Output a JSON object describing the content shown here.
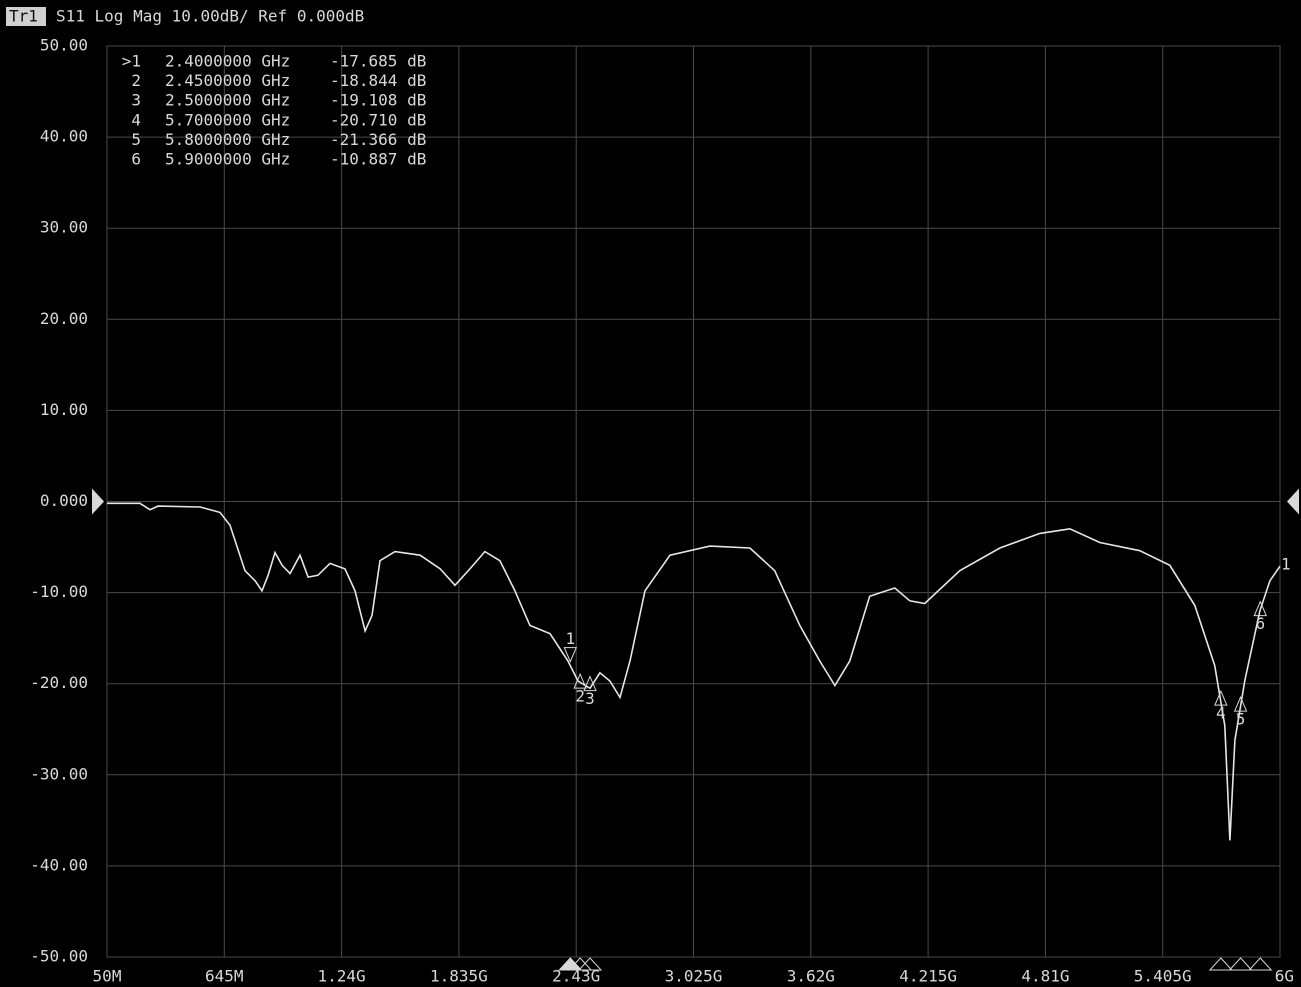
{
  "chart_data": {
    "type": "line",
    "trace_label": "Tr1",
    "title": "S11 Log Mag 10.00dB/ Ref 0.000dB",
    "color": "#e6e6e6",
    "grid": true,
    "xlim": [
      50,
      6000
    ],
    "xticks": [
      {
        "value": 50,
        "label": "50M"
      },
      {
        "value": 645,
        "label": "645M"
      },
      {
        "value": 1240,
        "label": "1.24G"
      },
      {
        "value": 1835,
        "label": "1.835G"
      },
      {
        "value": 2430,
        "label": "2.43G"
      },
      {
        "value": 3025,
        "label": "3.025G"
      },
      {
        "value": 3620,
        "label": "3.62G"
      },
      {
        "value": 4215,
        "label": "4.215G"
      },
      {
        "value": 4810,
        "label": "4.81G"
      },
      {
        "value": 5405,
        "label": "5.405G"
      },
      {
        "value": 6000,
        "label": "6G"
      }
    ],
    "ylim": [
      -50,
      50
    ],
    "yticks": [
      {
        "value": 50,
        "label": "50.00"
      },
      {
        "value": 40,
        "label": "40.00"
      },
      {
        "value": 30,
        "label": "30.00"
      },
      {
        "value": 20,
        "label": "20.00"
      },
      {
        "value": 10,
        "label": "10.00"
      },
      {
        "value": 0,
        "label": "0.000"
      },
      {
        "value": -10,
        "label": "-10.00"
      },
      {
        "value": -20,
        "label": "-20.00"
      },
      {
        "value": -30,
        "label": "-30.00"
      },
      {
        "value": -40,
        "label": "-40.00"
      },
      {
        "value": -50,
        "label": "-50.00"
      }
    ],
    "x": [
      50,
      217,
      268,
      309,
      522,
      623,
      674,
      750,
      801,
      836,
      867,
      902,
      938,
      979,
      1029,
      1070,
      1120,
      1181,
      1257,
      1308,
      1359,
      1394,
      1435,
      1511,
      1638,
      1740,
      1815,
      1891,
      1967,
      2043,
      2119,
      2195,
      2297,
      2388,
      2439,
      2500,
      2550,
      2601,
      2652,
      2703,
      2779,
      2906,
      3108,
      3311,
      3437,
      3564,
      3665,
      3742,
      3818,
      3919,
      4046,
      4122,
      4198,
      4376,
      4579,
      4782,
      4934,
      5086,
      5289,
      5441,
      5568,
      5669,
      5720,
      5746,
      5771,
      5822,
      5898,
      5949,
      6000
    ],
    "values": [
      -0.2,
      -0.2,
      -0.9,
      -0.5,
      -0.6,
      -1.2,
      -2.6,
      -7.6,
      -8.7,
      -9.8,
      -8.1,
      -5.6,
      -7.0,
      -7.9,
      -5.9,
      -8.3,
      -8.1,
      -6.8,
      -7.4,
      -9.8,
      -14.2,
      -12.5,
      -6.5,
      -5.5,
      -5.9,
      -7.4,
      -9.2,
      -7.4,
      -5.5,
      -6.5,
      -9.8,
      -13.6,
      -14.5,
      -17.5,
      -19.7,
      -20.5,
      -18.8,
      -19.7,
      -21.5,
      -17.5,
      -9.8,
      -5.9,
      -4.9,
      -5.1,
      -7.6,
      -13.6,
      -17.5,
      -20.2,
      -17.5,
      -10.4,
      -9.5,
      -10.9,
      -11.2,
      -7.6,
      -5.1,
      -3.5,
      -3.0,
      -4.5,
      -5.4,
      -7.0,
      -11.4,
      -18.0,
      -24.6,
      -37.2,
      -26.2,
      -19.6,
      -12.0,
      -8.7,
      -7.1
    ],
    "trace_end_label": "1",
    "markers": [
      {
        "name": ">1",
        "tag": "1",
        "x": 2400,
        "x_label": "2.4000000 GHz",
        "value": -17.685,
        "value_label": "-17.685 dB"
      },
      {
        "name": "2",
        "tag": "2",
        "x": 2450,
        "x_label": "2.4500000 GHz",
        "value": -18.844,
        "value_label": "-18.844 dB"
      },
      {
        "name": "3",
        "tag": "3",
        "x": 2500,
        "x_label": "2.5000000 GHz",
        "value": -19.108,
        "value_label": "-19.108 dB"
      },
      {
        "name": "4",
        "tag": "4",
        "x": 5700,
        "x_label": "5.7000000 GHz",
        "value": -20.71,
        "value_label": "-20.710 dB"
      },
      {
        "name": "5",
        "tag": "5",
        "x": 5800,
        "x_label": "5.8000000 GHz",
        "value": -21.366,
        "value_label": "-21.366 dB"
      },
      {
        "name": "6",
        "tag": "6",
        "x": 5900,
        "x_label": "5.9000000 GHz",
        "value": -10.887,
        "value_label": "-10.887 dB"
      }
    ]
  }
}
